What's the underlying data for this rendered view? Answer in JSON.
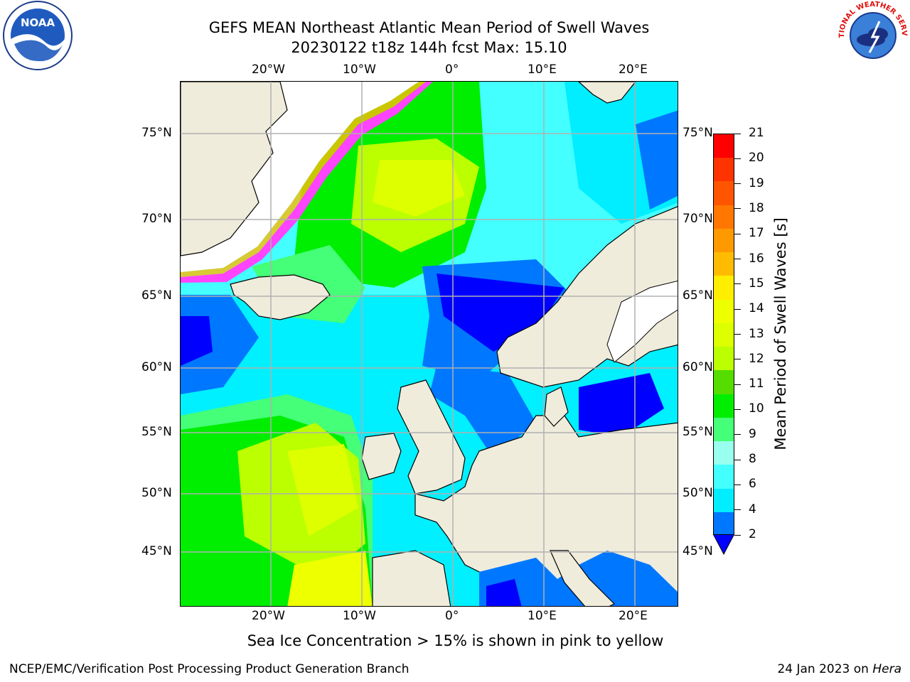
{
  "title": {
    "line1": "GEFS MEAN Northeast Atlantic Mean Period of Swell Waves",
    "line2": "20230122 t18z 144h fcst   Max: 15.10"
  },
  "logos": {
    "left": {
      "name": "noaa-logo",
      "text": "NOAA"
    },
    "right": {
      "name": "nws-logo",
      "text": "NATIONAL WEATHER SERVICE"
    }
  },
  "map": {
    "top_lon_labels": [
      "20°W",
      "10°W",
      "0°",
      "10°E",
      "20°E"
    ],
    "bottom_lon_labels": [
      "20°W",
      "10°W",
      "0°",
      "10°E",
      "20°E"
    ],
    "left_lat_labels": [
      "75°N",
      "70°N",
      "65°N",
      "60°N",
      "55°N",
      "50°N",
      "45°N"
    ],
    "right_lat_labels": [
      "75°N",
      "70°N",
      "65°N",
      "60°N",
      "55°N",
      "50°N",
      "45°N"
    ],
    "land_color": "#efecdc",
    "ice_color": "#ff44ff",
    "grid_color": "#b0b0b0"
  },
  "colorbar": {
    "title": "Mean Period of Swell Waves [s]",
    "labels": [
      "21",
      "20",
      "19",
      "18",
      "17",
      "16",
      "15",
      "14",
      "13",
      "12",
      "11",
      "10",
      "9",
      "8",
      "6",
      "4",
      "2"
    ],
    "colors": [
      "#ff0000",
      "#ff3300",
      "#ff5500",
      "#ff7700",
      "#ff9900",
      "#ffbb00",
      "#ffee00",
      "#eeff00",
      "#ddff00",
      "#bbff00",
      "#55dd00",
      "#00ee00",
      "#44ff77",
      "#99ffee",
      "#44ffff",
      "#00eeff",
      "#0077ff"
    ],
    "extend_color": "#0000ff"
  },
  "note": "Sea Ice Concentration > 15% is shown in pink to yellow",
  "footer": {
    "left": "NCEP/EMC/Verification Post Processing Product Generation Branch",
    "date": "24 Jan 2023 on ",
    "machine": "Hera"
  }
}
